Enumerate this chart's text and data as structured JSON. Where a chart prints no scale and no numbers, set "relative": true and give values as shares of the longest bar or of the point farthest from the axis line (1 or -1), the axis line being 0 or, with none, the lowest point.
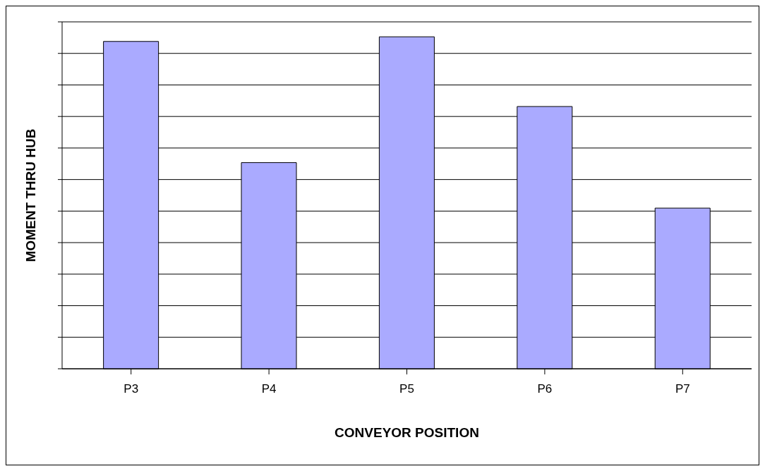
{
  "chart_data": {
    "type": "bar",
    "relative": true,
    "xlabel": "CONVEYOR POSITION",
    "ylabel": "MOMENT THRU HUB",
    "categories": [
      "P3",
      "P4",
      "P5",
      "P6",
      "P7"
    ],
    "values": [
      0.986,
      0.621,
      1,
      0.79,
      0.484
    ],
    "color": "#aaaaff",
    "grid": "y"
  }
}
